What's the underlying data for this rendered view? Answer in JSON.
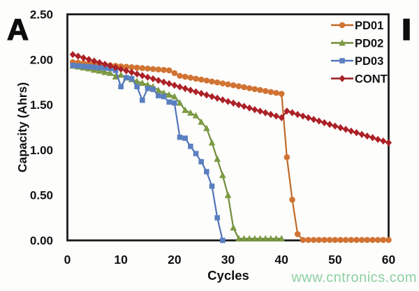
{
  "panel_label": "A",
  "corner_mark": "I",
  "watermark": "www.cntronics.com",
  "colors": {
    "axis": "#1b1b1b",
    "text": "#111111",
    "watermark_green": "#8ecfa2",
    "pd01_orange": "#d17433",
    "pd02_green": "#7c9a43",
    "pd03_blue": "#5b80c2",
    "cont_dark_red": "#ac2127"
  },
  "chart_data": {
    "type": "line",
    "title": "",
    "xlabel": "Cycles",
    "ylabel": "Capacity (Ahrs)",
    "xlim": [
      0,
      60
    ],
    "ylim": [
      0,
      2.5
    ],
    "xticks": [
      0,
      10,
      20,
      30,
      40,
      50,
      60
    ],
    "ytick_labels": [
      "0.00",
      "0.50",
      "1.00",
      "1.50",
      "2.00",
      "2.50"
    ],
    "grid": false,
    "legend_position": "top-right-inside",
    "legend": [
      "PD01",
      "PD02",
      "PD03",
      "CONT"
    ],
    "series": [
      {
        "name": "PD01",
        "marker": "circle",
        "color": "#d17433",
        "line_color": "#c06a28",
        "x": [
          1,
          2,
          3,
          4,
          5,
          6,
          7,
          8,
          9,
          10,
          11,
          12,
          13,
          14,
          15,
          16,
          17,
          18,
          19,
          20,
          21,
          22,
          23,
          24,
          25,
          26,
          27,
          28,
          29,
          30,
          31,
          32,
          33,
          34,
          35,
          36,
          37,
          38,
          39,
          40,
          41,
          42,
          43,
          44,
          45,
          46,
          47,
          48,
          49,
          50,
          51,
          52,
          53,
          54,
          55,
          56,
          57,
          58,
          59,
          60
        ],
        "values": [
          1.97,
          1.965,
          1.96,
          1.955,
          1.95,
          1.945,
          1.94,
          1.935,
          1.93,
          1.925,
          1.92,
          1.915,
          1.91,
          1.905,
          1.9,
          1.895,
          1.89,
          1.885,
          1.88,
          1.85,
          1.82,
          1.81,
          1.799,
          1.788,
          1.778,
          1.768,
          1.757,
          1.747,
          1.736,
          1.726,
          1.715,
          1.705,
          1.694,
          1.683,
          1.673,
          1.663,
          1.652,
          1.641,
          1.631,
          1.621,
          0.92,
          0.45,
          0.07,
          0.005,
          0.005,
          0.005,
          0.005,
          0.005,
          0.005,
          0.005,
          0.005,
          0.005,
          0.005,
          0.005,
          0.005,
          0.005,
          0.005,
          0.005,
          0.005,
          0.005
        ]
      },
      {
        "name": "PD02",
        "marker": "triangle",
        "color": "#7c9a43",
        "line_color": "#718c39",
        "x": [
          1,
          2,
          3,
          4,
          5,
          6,
          7,
          8,
          9,
          10,
          11,
          12,
          13,
          14,
          15,
          16,
          17,
          18,
          19,
          20,
          21,
          22,
          23,
          24,
          25,
          26,
          27,
          28,
          29,
          30,
          31,
          32,
          33,
          34,
          35,
          36,
          37,
          38,
          39,
          40
        ],
        "values": [
          1.93,
          1.92,
          1.91,
          1.9,
          1.885,
          1.875,
          1.86,
          1.85,
          1.81,
          1.83,
          1.8,
          1.78,
          1.76,
          1.74,
          1.72,
          1.7,
          1.66,
          1.63,
          1.61,
          1.59,
          1.52,
          1.44,
          1.41,
          1.38,
          1.31,
          1.24,
          1.08,
          0.9,
          0.72,
          0.5,
          0.14,
          0.02,
          0.02,
          0.02,
          0.02,
          0.02,
          0.02,
          0.02,
          0.02,
          0.02
        ]
      },
      {
        "name": "PD03",
        "marker": "square",
        "color": "#5b80c2",
        "line_color": "#5174b8",
        "x": [
          1,
          2,
          3,
          4,
          5,
          6,
          7,
          8,
          9,
          10,
          11,
          12,
          13,
          14,
          15,
          16,
          17,
          18,
          19,
          20,
          21,
          22,
          23,
          24,
          25,
          26,
          27,
          28,
          29
        ],
        "values": [
          1.935,
          1.93,
          1.925,
          1.92,
          1.915,
          1.91,
          1.905,
          1.9,
          1.88,
          1.7,
          1.8,
          1.79,
          1.7,
          1.55,
          1.68,
          1.67,
          1.6,
          1.59,
          1.53,
          1.52,
          1.14,
          1.13,
          1.04,
          0.96,
          0.87,
          0.76,
          0.6,
          0.25,
          0.0
        ]
      },
      {
        "name": "CONT",
        "marker": "diamond",
        "color": "#ac2127",
        "line_color": "#9a1b20",
        "x": [
          1,
          2,
          3,
          4,
          5,
          6,
          7,
          8,
          9,
          10,
          11,
          12,
          13,
          14,
          15,
          16,
          17,
          18,
          19,
          20,
          21,
          22,
          23,
          24,
          25,
          26,
          27,
          28,
          29,
          30,
          31,
          32,
          33,
          34,
          35,
          36,
          37,
          38,
          39,
          40,
          41,
          42,
          43,
          44,
          45,
          46,
          47,
          48,
          49,
          50,
          51,
          52,
          53,
          54,
          55,
          56,
          57,
          58,
          59,
          60
        ],
        "values": [
          2.055,
          2.037,
          2.019,
          2.001,
          1.983,
          1.966,
          1.948,
          1.93,
          1.912,
          1.894,
          1.876,
          1.858,
          1.84,
          1.822,
          1.804,
          1.787,
          1.769,
          1.751,
          1.733,
          1.715,
          1.697,
          1.679,
          1.661,
          1.643,
          1.625,
          1.608,
          1.59,
          1.572,
          1.554,
          1.536,
          1.518,
          1.5,
          1.482,
          1.464,
          1.446,
          1.429,
          1.411,
          1.393,
          1.375,
          1.357,
          1.43,
          1.412,
          1.393,
          1.375,
          1.356,
          1.338,
          1.32,
          1.301,
          1.283,
          1.264,
          1.246,
          1.228,
          1.209,
          1.191,
          1.172,
          1.154,
          1.136,
          1.117,
          1.099,
          1.08
        ]
      }
    ]
  }
}
